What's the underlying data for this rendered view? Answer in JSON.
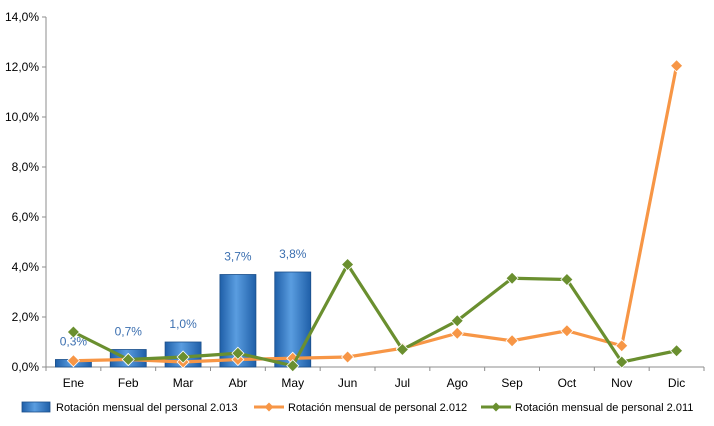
{
  "chart_data": {
    "type": "bar",
    "categories": [
      "Ene",
      "Feb",
      "Mar",
      "Abr",
      "May",
      "Jun",
      "Jul",
      "Ago",
      "Sep",
      "Oct",
      "Nov",
      "Dic"
    ],
    "ylim": [
      0,
      14
    ],
    "y_ticks": [
      "0,0%",
      "2,0%",
      "4,0%",
      "6,0%",
      "8,0%",
      "10,0%",
      "12,0%",
      "14,0%"
    ],
    "y_tick_values": [
      0,
      2,
      4,
      6,
      8,
      10,
      12,
      14
    ],
    "grid": false,
    "legend_position": "bottom",
    "series": [
      {
        "name": "Rotación mensual del personal 2.013",
        "type": "bar",
        "color": "#3b7fc4",
        "values": [
          0.3,
          0.7,
          1.0,
          3.7,
          3.8,
          null,
          null,
          null,
          null,
          null,
          null,
          null
        ],
        "data_labels": [
          "0,3%",
          "0,7%",
          "1,0%",
          "3,7%",
          "3,8%",
          "",
          "",
          "",
          "",
          "",
          "",
          ""
        ]
      },
      {
        "name": "Rotación mensual de personal 2.012",
        "type": "line",
        "marker": "diamond",
        "color": "#f79646",
        "values": [
          0.25,
          0.3,
          0.2,
          0.3,
          0.35,
          0.4,
          0.75,
          1.35,
          1.05,
          1.45,
          0.85,
          12.05
        ]
      },
      {
        "name": "Rotación mensual de personal 2.011",
        "type": "line",
        "marker": "diamond",
        "color": "#6a8f2f",
        "values": [
          1.4,
          0.3,
          0.4,
          0.55,
          0.05,
          4.1,
          0.7,
          1.85,
          3.55,
          3.5,
          0.2,
          0.65
        ]
      }
    ]
  }
}
